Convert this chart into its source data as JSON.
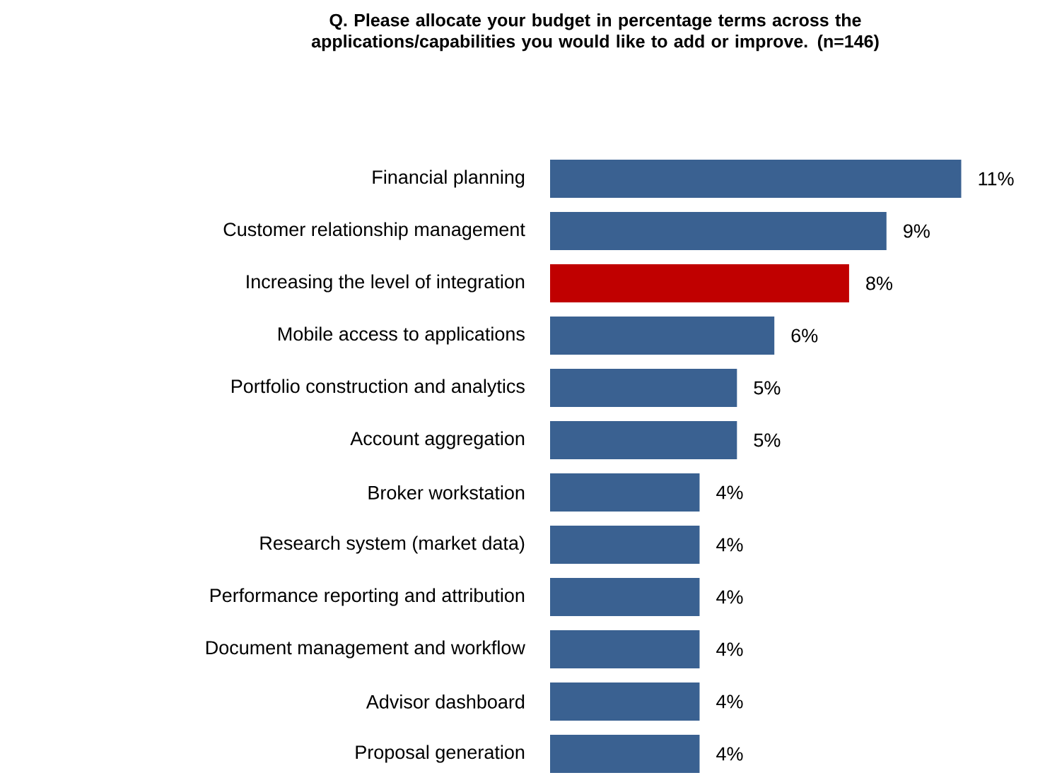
{
  "chart_data": {
    "type": "bar",
    "orientation": "horizontal",
    "title": "Q. Please allocate your budget in percentage terms across the applications/capabilities you would like to add or improve. (n=146)",
    "categories": [
      "Financial planning",
      "Customer relationship management",
      "Increasing the level of integration",
      "Mobile access to applications",
      "Portfolio construction and analytics",
      "Account aggregation",
      "Broker workstation",
      "Research system (market data)",
      "Performance reporting and attribution",
      "Document management and workflow",
      "Advisor dashboard",
      "Proposal generation"
    ],
    "values": [
      11,
      9,
      8,
      6,
      5,
      5,
      4,
      4,
      4,
      4,
      4,
      4
    ],
    "value_labels": [
      "11%",
      "9%",
      "8%",
      "6%",
      "5%",
      "5%",
      "4%",
      "4%",
      "4%",
      "4%",
      "4%",
      "4%"
    ],
    "colors": [
      "#3a6191",
      "#3a6191",
      "#c00000",
      "#3a6191",
      "#3a6191",
      "#3a6191",
      "#3a6191",
      "#3a6191",
      "#3a6191",
      "#3a6191",
      "#3a6191",
      "#3a6191"
    ]
  }
}
